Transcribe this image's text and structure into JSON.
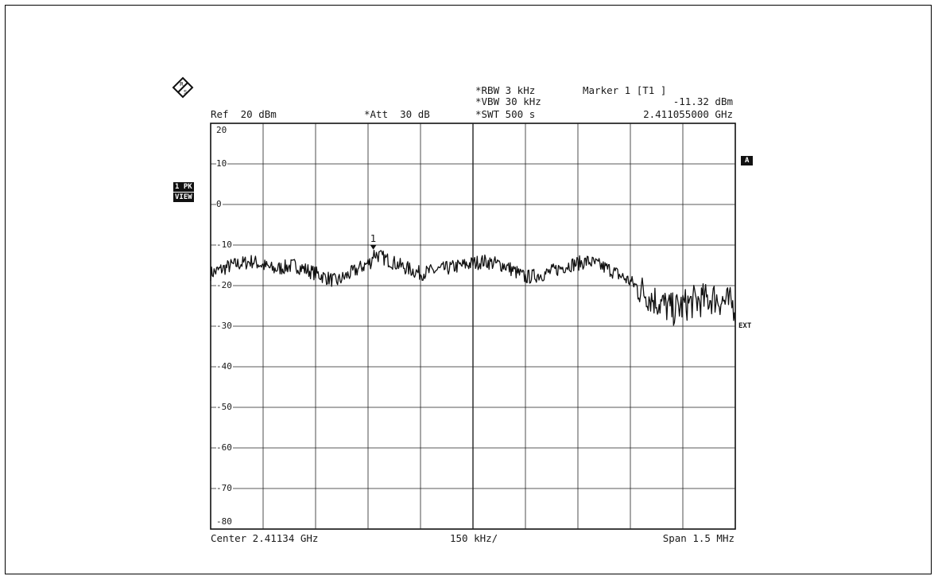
{
  "header": {
    "ref": "Ref  20 dBm",
    "att": "*Att  30 dB",
    "rbw": "*RBW 3 kHz",
    "vbw": "*VBW 30 kHz",
    "swt": "*SWT 500 s",
    "marker_title": "Marker 1 [T1 ]",
    "marker_level": "-11.32 dBm",
    "marker_freq": "2.411055000 GHz"
  },
  "footer": {
    "center": "Center 2.41134 GHz",
    "div": "150 kHz/",
    "span": "Span 1.5 MHz"
  },
  "side_tags": {
    "trace": "1 PK",
    "view": "VIEW",
    "a": "A",
    "ext": "EXT"
  },
  "marker_label": "1",
  "chart_data": {
    "type": "line",
    "xlabel": "",
    "ylabel": "",
    "y_unit": "dBm",
    "xlim": [
      2.41059,
      2.41209
    ],
    "ylim": [
      -80,
      20
    ],
    "y_ticks": [
      20,
      10,
      0,
      -10,
      -20,
      -30,
      -40,
      -50,
      -60,
      -70,
      -80
    ],
    "y_tick_labels": [
      "20",
      "10",
      "0",
      "-10",
      "-20",
      "-30",
      "-40",
      "-50",
      "-60",
      "-70",
      "-80"
    ],
    "grid": true,
    "x_divisions": 10,
    "marker": {
      "x": 2.411055,
      "y": -11.32
    },
    "series": [
      {
        "x": [
          2.41059,
          2.41065,
          2.41071,
          2.41077,
          2.41083,
          2.41089,
          2.41095,
          2.41101,
          2.41105,
          2.411055,
          2.41113,
          2.41119,
          2.41125,
          2.41131,
          2.41137,
          2.41143,
          2.41149,
          2.41155,
          2.41161,
          2.41167,
          2.41173,
          2.41179,
          2.41185,
          2.41191,
          2.41197,
          2.41203,
          2.41209
        ],
        "y": [
          -17,
          -15,
          -14,
          -16,
          -15,
          -17,
          -19,
          -16,
          -14,
          -12,
          -15,
          -17,
          -16,
          -15,
          -14,
          -15,
          -18,
          -17,
          -15,
          -14,
          -16,
          -19,
          -23,
          -26,
          -24,
          -23,
          -25
        ]
      }
    ]
  }
}
